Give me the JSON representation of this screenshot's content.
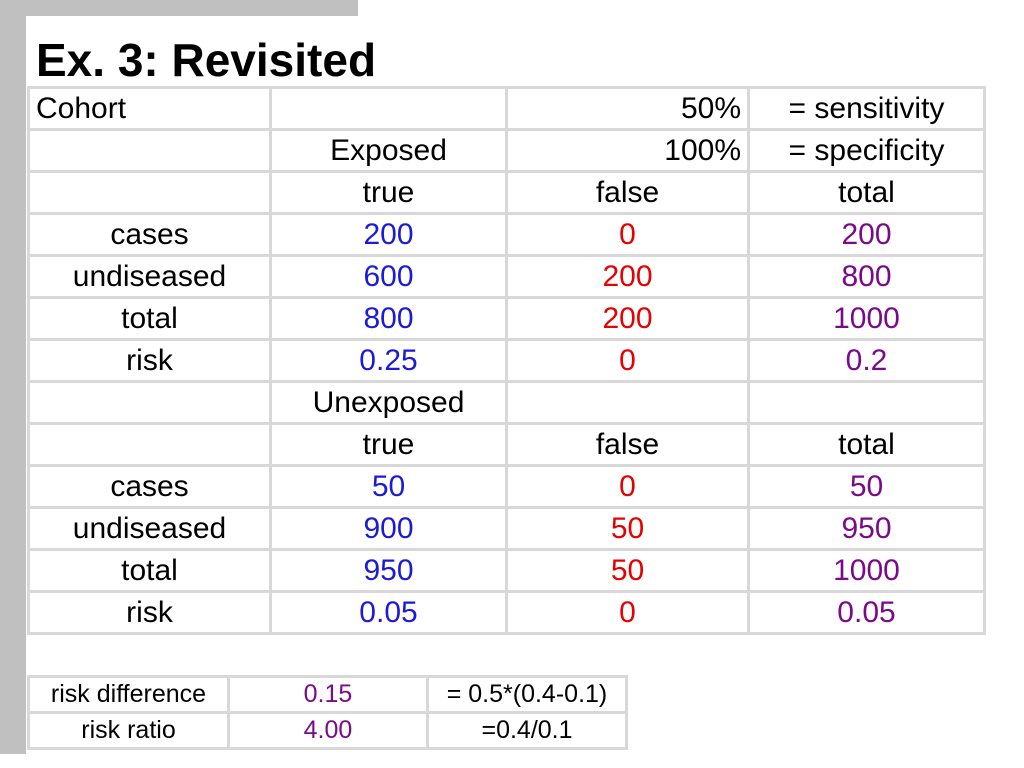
{
  "title": "Ex. 3: Revisited",
  "colors": {
    "true_col": "#1a1ad8",
    "false_col": "#e60000",
    "total_col": "#7a0a8a"
  },
  "main": {
    "r0": {
      "label": "Cohort",
      "c1": "",
      "c2": "50%",
      "c3": "= sensitivity"
    },
    "r1": {
      "c1": "Exposed",
      "c2": "100%",
      "c3": "= specificity"
    },
    "r2": {
      "c1": "true",
      "c2": "false",
      "c3": "total"
    },
    "r3": {
      "label": "cases",
      "true": "200",
      "false": "0",
      "total": "200"
    },
    "r4": {
      "label": "undiseased",
      "true": "600",
      "false": "200",
      "total": "800"
    },
    "r5": {
      "label": "total",
      "true": "800",
      "false": "200",
      "total": "1000"
    },
    "r6": {
      "label": "risk",
      "true": "0.25",
      "false": "0",
      "total": "0.2"
    },
    "r7": {
      "c1": "Unexposed"
    },
    "r8": {
      "c1": "true",
      "c2": "false",
      "c3": "total"
    },
    "r9": {
      "label": "cases",
      "true": "50",
      "false": "0",
      "total": "50"
    },
    "r10": {
      "label": "undiseased",
      "true": "900",
      "false": "50",
      "total": "950"
    },
    "r11": {
      "label": "total",
      "true": "950",
      "false": "50",
      "total": "1000"
    },
    "r12": {
      "label": "risk",
      "true": "0.05",
      "false": "0",
      "total": "0.05"
    }
  },
  "summary": [
    {
      "label": "risk difference",
      "value": "0.15",
      "formula": "= 0.5*(0.4-0.1)"
    },
    {
      "label": "risk ratio",
      "value": "4.00",
      "formula": "=0.4/0.1"
    }
  ]
}
